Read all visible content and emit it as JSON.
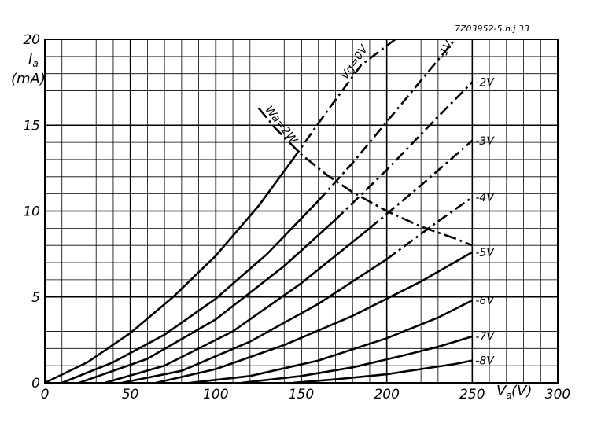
{
  "chart_data": {
    "type": "line",
    "title": "",
    "figure_code": "7Z03952-5.h.j 33",
    "xlabel": "Va (V)",
    "ylabel": "Ia (mA)",
    "xlabel_parts": {
      "base": "V",
      "sub": "a",
      "unit": "(V)"
    },
    "ylabel_parts": {
      "base": "I",
      "sub": "a",
      "unit": "(mA)"
    },
    "xlim": [
      0,
      300
    ],
    "ylim": [
      0,
      20
    ],
    "x_ticks": [
      0,
      50,
      100,
      150,
      200,
      250,
      300
    ],
    "y_ticks": [
      0,
      5,
      10,
      15,
      20
    ],
    "grid": true,
    "minor_grid_step": {
      "x": 10,
      "y": 1
    },
    "series": [
      {
        "name": "Vg = 0V",
        "label": "Vg=0V",
        "x": [
          0,
          25,
          50,
          75,
          100,
          125,
          145,
          165,
          185,
          205
        ],
        "y": [
          0,
          1.2,
          2.9,
          5.0,
          7.4,
          10.3,
          13.0,
          15.8,
          18.5,
          20
        ]
      },
      {
        "name": "-1V",
        "label": "-1V",
        "x": [
          10,
          40,
          70,
          100,
          130,
          160,
          180,
          200,
          215,
          230,
          240
        ],
        "y": [
          0,
          1.2,
          2.8,
          4.9,
          7.5,
          10.6,
          12.8,
          15.2,
          17.0,
          18.8,
          20
        ]
      },
      {
        "name": "-2V",
        "label": "-2V",
        "x": [
          20,
          60,
          100,
          140,
          170,
          200,
          230,
          250
        ],
        "y": [
          0,
          1.4,
          3.7,
          6.8,
          9.5,
          12.4,
          15.5,
          17.5
        ]
      },
      {
        "name": "-3V",
        "label": "-3V",
        "x": [
          35,
          70,
          110,
          150,
          190,
          220,
          250
        ],
        "y": [
          0,
          1.0,
          3.0,
          5.8,
          9.0,
          11.5,
          14.1
        ]
      },
      {
        "name": "-4V",
        "label": "-4V",
        "x": [
          45,
          80,
          120,
          160,
          200,
          230,
          250
        ],
        "y": [
          0,
          0.7,
          2.4,
          4.6,
          7.2,
          9.4,
          10.8
        ]
      },
      {
        "name": "-5V",
        "label": "-5V",
        "x": [
          65,
          100,
          140,
          180,
          220,
          250
        ],
        "y": [
          0,
          0.8,
          2.2,
          3.9,
          5.9,
          7.6
        ]
      },
      {
        "name": "-6V",
        "label": "-6V",
        "x": [
          85,
          120,
          160,
          200,
          230,
          250
        ],
        "y": [
          0,
          0.4,
          1.3,
          2.6,
          3.8,
          4.8
        ]
      },
      {
        "name": "-7V",
        "label": "-7V",
        "x": [
          115,
          150,
          180,
          210,
          230,
          250
        ],
        "y": [
          0,
          0.4,
          0.9,
          1.6,
          2.1,
          2.7
        ]
      },
      {
        "name": "-8V",
        "label": "-8V",
        "x": [
          145,
          170,
          200,
          220,
          240,
          250
        ],
        "y": [
          0,
          0.2,
          0.5,
          0.8,
          1.1,
          1.3
        ]
      },
      {
        "name": "Wa = 2W",
        "label": "Wa=2W",
        "x": [
          125,
          135,
          150,
          165,
          180,
          200,
          220,
          240,
          250
        ],
        "y": [
          16.0,
          14.8,
          13.3,
          12.1,
          11.1,
          10.0,
          9.1,
          8.4,
          8.0
        ]
      }
    ]
  }
}
